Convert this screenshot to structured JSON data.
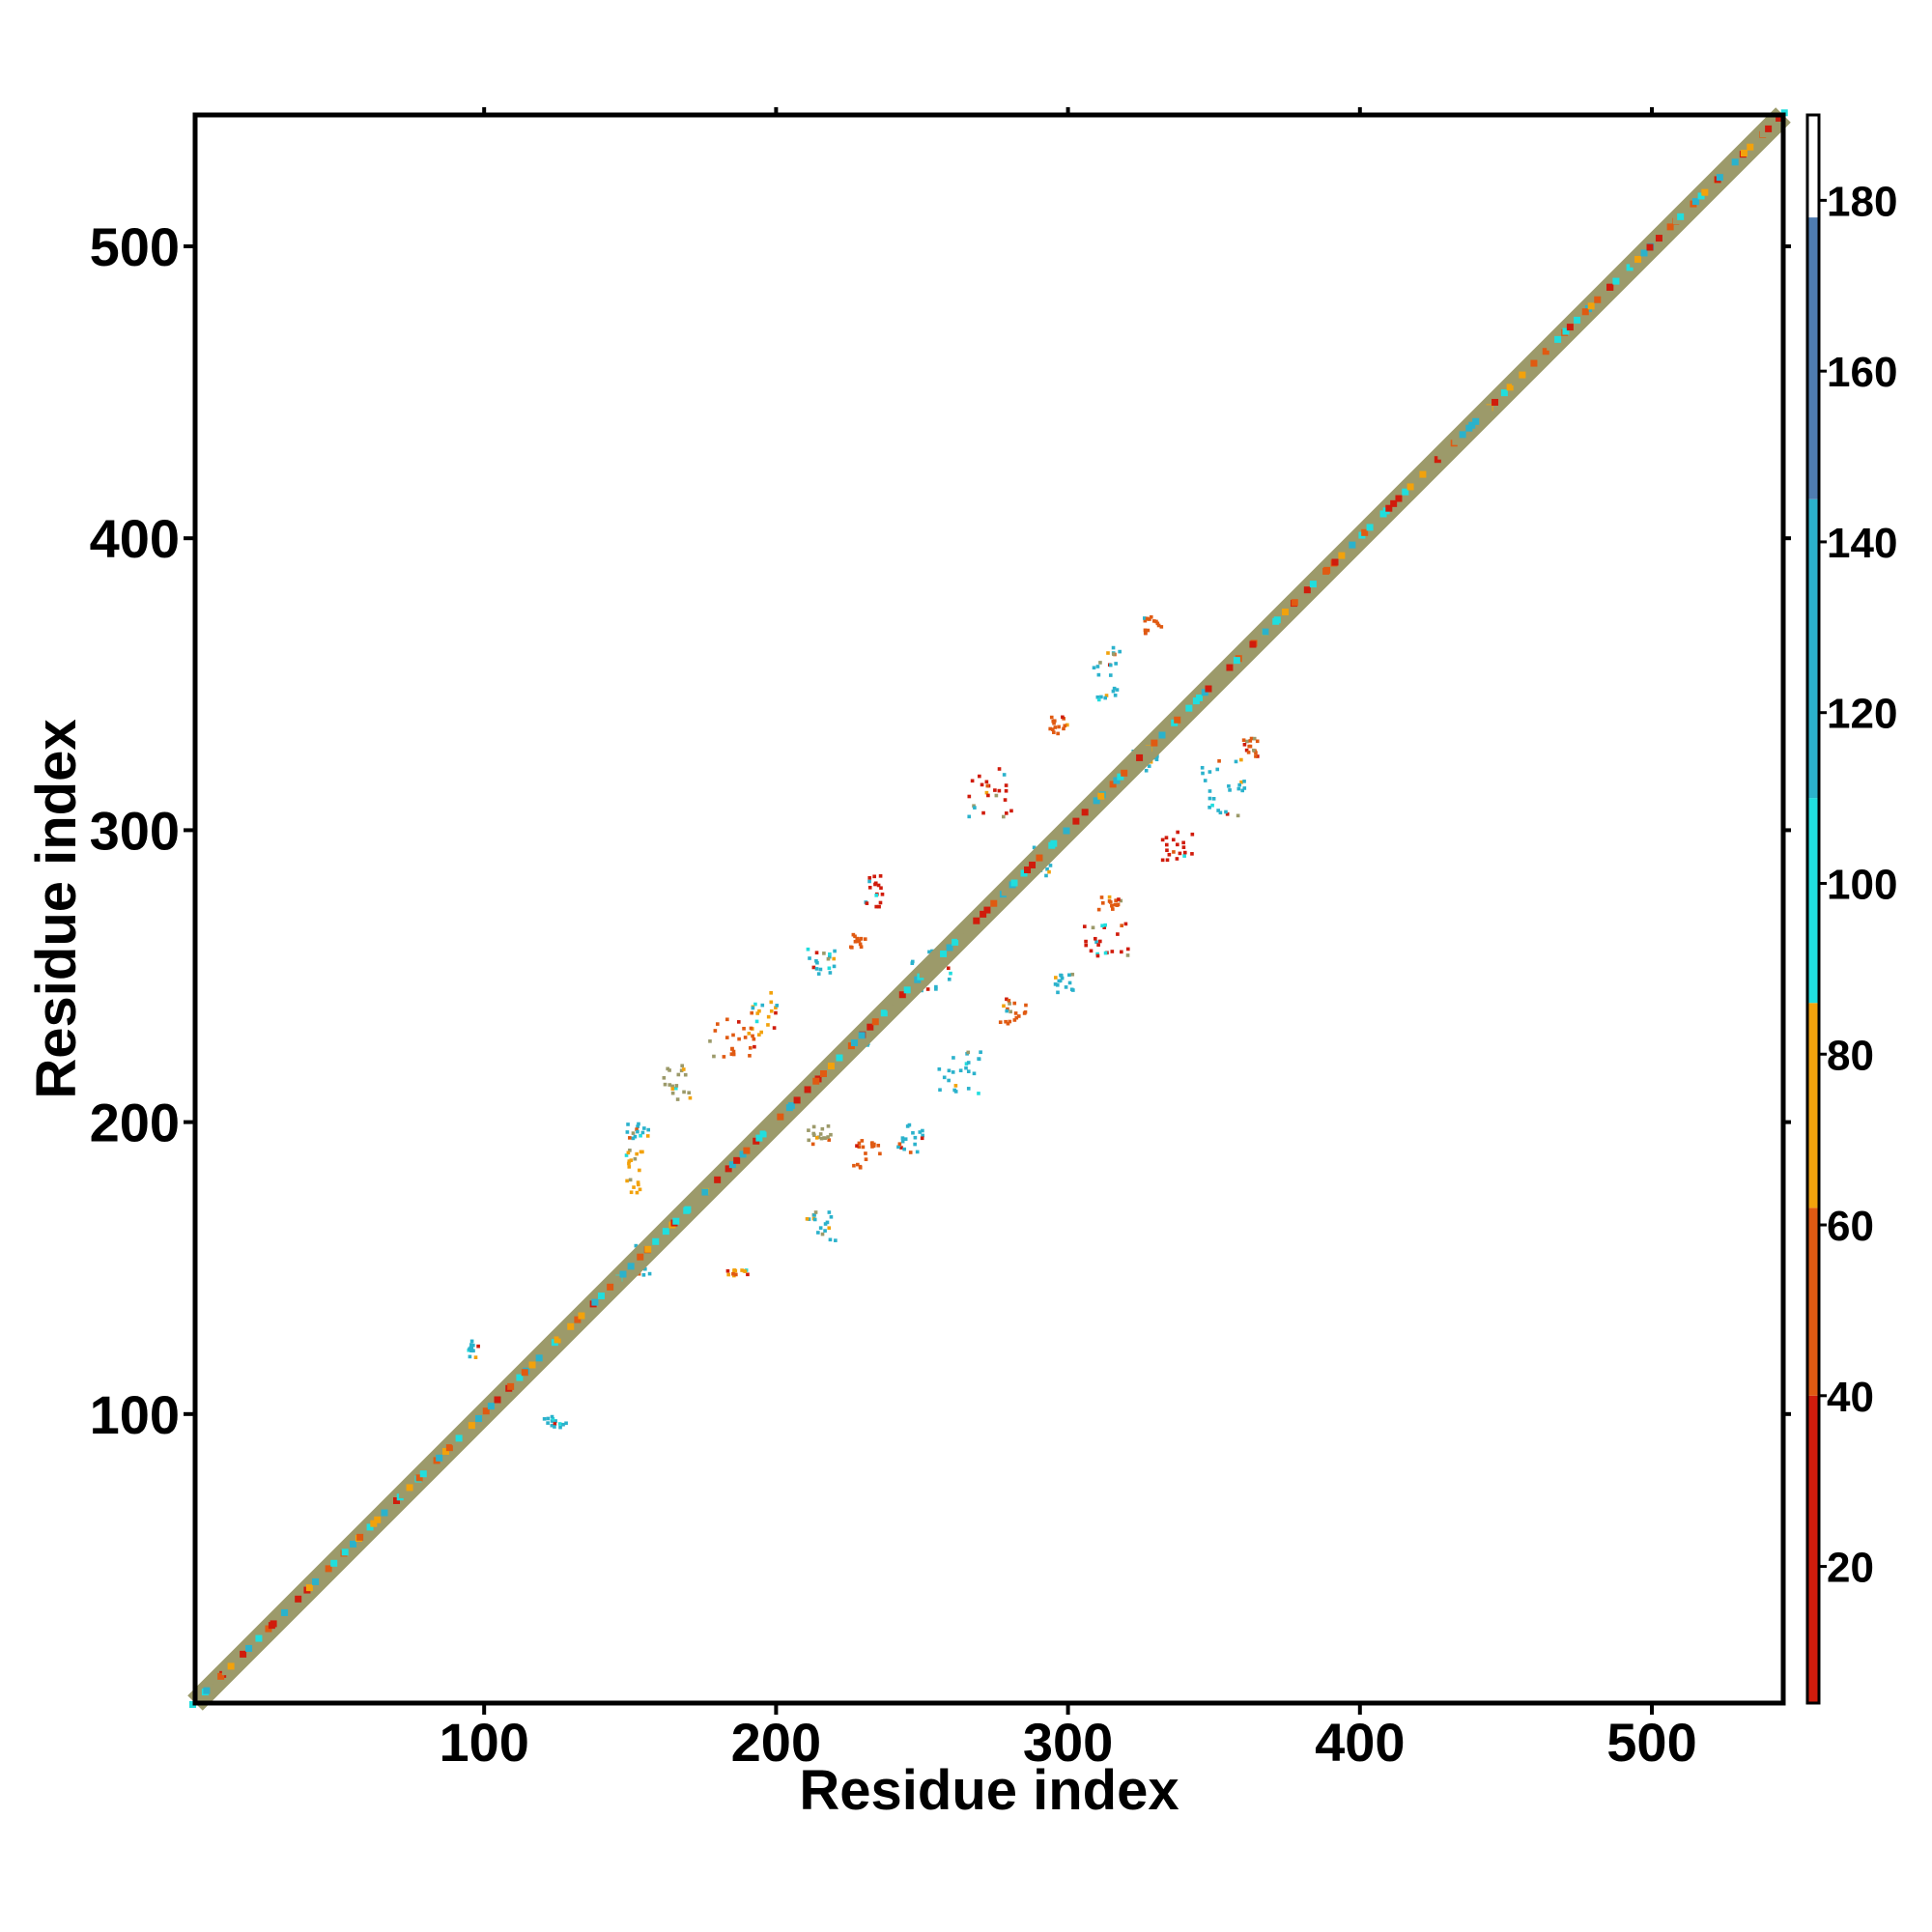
{
  "chart_data": {
    "type": "heatmap",
    "title": "",
    "xlabel": "Residue index",
    "ylabel": "Residue index",
    "xlim": [
      1,
      545
    ],
    "ylim": [
      1,
      545
    ],
    "x_ticks": [
      100,
      200,
      300,
      400,
      500
    ],
    "y_ticks": [
      100,
      200,
      300,
      400,
      500
    ],
    "grid": false,
    "colorbar": {
      "ticks": [
        20,
        40,
        60,
        80,
        100,
        120,
        140,
        160,
        180
      ],
      "range": [
        4,
        190
      ],
      "bands": [
        {
          "from": 4,
          "to": 40,
          "color": "#d01c0c"
        },
        {
          "from": 40,
          "to": 62,
          "color": "#e05a12"
        },
        {
          "from": 62,
          "to": 86,
          "color": "#f2a20c"
        },
        {
          "from": 86,
          "to": 110,
          "color": "#20dede"
        },
        {
          "from": 110,
          "to": 145,
          "color": "#2bb2cc"
        },
        {
          "from": 145,
          "to": 178,
          "color": "#4f7cb0"
        },
        {
          "from": 178,
          "to": 190,
          "color": "#ffffff"
        }
      ]
    },
    "diagonal_color": "#9c9a6a",
    "off_diagonal_contacts": [
      {
        "x": [
          120,
          128
        ],
        "y": [
          96,
          100
        ],
        "color": "#2bb2cc"
      },
      {
        "x": [
          94,
          98
        ],
        "y": [
          120,
          126
        ],
        "color": "#2bb2cc"
      },
      {
        "x": [
          150,
          160
        ],
        "y": [
          148,
          160
        ],
        "color": "#2bb2cc"
      },
      {
        "x": [
          182,
          190
        ],
        "y": [
          148,
          150
        ],
        "color": "#f2a20c"
      },
      {
        "x": [
          148,
          154
        ],
        "y": [
          175,
          192
        ],
        "color": "#f2a20c"
      },
      {
        "x": [
          148,
          156
        ],
        "y": [
          195,
          200
        ],
        "color": "#2bb2cc"
      },
      {
        "x": [
          160,
          170
        ],
        "y": [
          208,
          220
        ],
        "color": "#9c9a6a"
      },
      {
        "x": [
          190,
          200
        ],
        "y": [
          230,
          245
        ],
        "color": "#f2a20c"
      },
      {
        "x": [
          176,
          192
        ],
        "y": [
          223,
          236
        ],
        "color": "#e05a12"
      },
      {
        "x": [
          210,
          220
        ],
        "y": [
          193,
          200
        ],
        "color": "#9c9a6a"
      },
      {
        "x": [
          225,
          235
        ],
        "y": [
          185,
          195
        ],
        "color": "#e05a12"
      },
      {
        "x": [
          210,
          220
        ],
        "y": [
          160,
          170
        ],
        "color": "#2bb2cc"
      },
      {
        "x": [
          240,
          250
        ],
        "y": [
          190,
          200
        ],
        "color": "#2bb2cc"
      },
      {
        "x": [
          210,
          220
        ],
        "y": [
          250,
          260
        ],
        "color": "#2bb2cc"
      },
      {
        "x": [
          230,
          236
        ],
        "y": [
          274,
          285
        ],
        "color": "#d01c0c"
      },
      {
        "x": [
          225,
          230
        ],
        "y": [
          260,
          265
        ],
        "color": "#e05a12"
      },
      {
        "x": [
          255,
          270
        ],
        "y": [
          210,
          225
        ],
        "color": "#2bb2cc"
      },
      {
        "x": [
          265,
          280
        ],
        "y": [
          305,
          322
        ],
        "color": "#d01c0c"
      },
      {
        "x": [
          276,
          288
        ],
        "y": [
          234,
          244
        ],
        "color": "#e05a12"
      },
      {
        "x": [
          305,
          320
        ],
        "y": [
          255,
          270
        ],
        "color": "#d01c0c"
      },
      {
        "x": [
          295,
          302
        ],
        "y": [
          245,
          252
        ],
        "color": "#2bb2cc"
      },
      {
        "x": [
          310,
          318
        ],
        "y": [
          272,
          278
        ],
        "color": "#e05a12"
      },
      {
        "x": [
          308,
          318
        ],
        "y": [
          345,
          365
        ],
        "color": "#2bb2cc"
      },
      {
        "x": [
          325,
          332
        ],
        "y": [
          368,
          374
        ],
        "color": "#e05a12"
      },
      {
        "x": [
          293,
          300
        ],
        "y": [
          333,
          340
        ],
        "color": "#e05a12"
      },
      {
        "x": [
          330,
          342
        ],
        "y": [
          290,
          300
        ],
        "color": "#d01c0c"
      },
      {
        "x": [
          345,
          360
        ],
        "y": [
          305,
          325
        ],
        "color": "#2bb2cc"
      },
      {
        "x": [
          358,
          366
        ],
        "y": [
          325,
          332
        ],
        "color": "#e05a12"
      },
      {
        "x": [
          245,
          260
        ],
        "y": [
          245,
          260
        ],
        "color": "#2bb2cc"
      },
      {
        "x": [
          285,
          295
        ],
        "y": [
          285,
          295
        ],
        "color": "#2bb2cc"
      },
      {
        "x": [
          225,
          232
        ],
        "y": [
          225,
          232
        ],
        "color": "#2bb2cc"
      },
      {
        "x": [
          320,
          330
        ],
        "y": [
          320,
          330
        ],
        "color": "#2bb2cc"
      }
    ]
  }
}
